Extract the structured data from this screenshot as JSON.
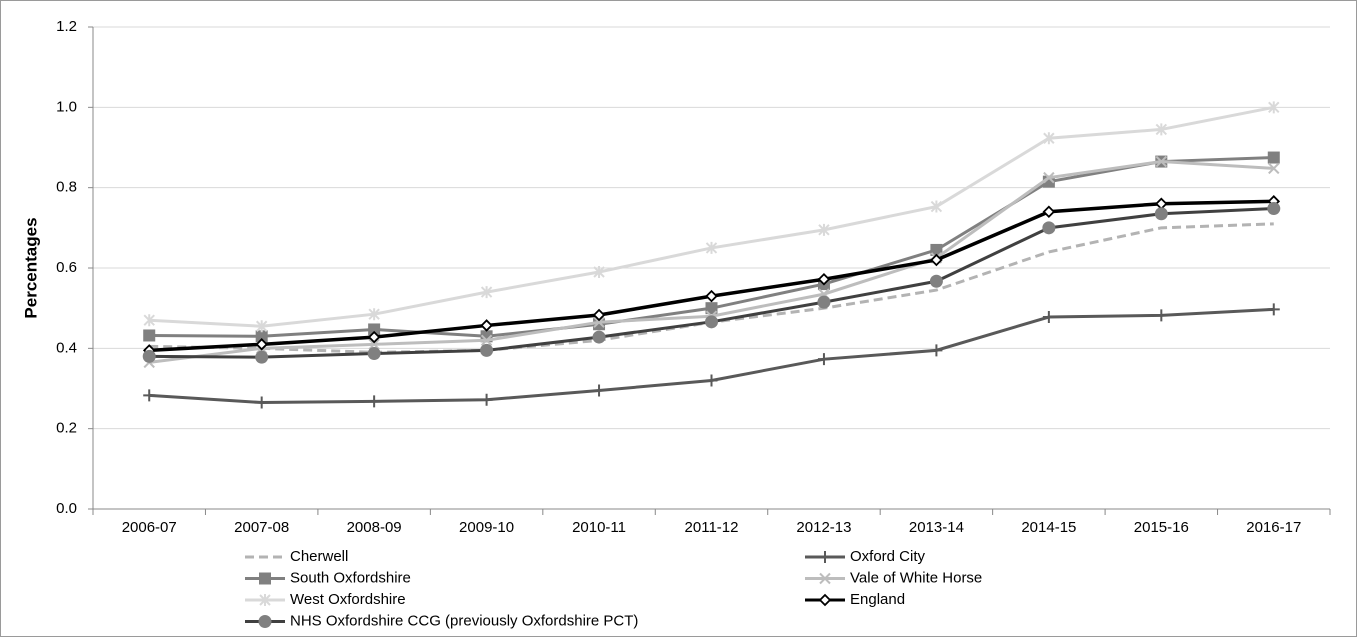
{
  "chart_data": {
    "type": "line",
    "y_label": "Percentages",
    "categories": [
      "2006-07",
      "2007-08",
      "2008-09",
      "2009-10",
      "2010-11",
      "2011-12",
      "2012-13",
      "2013-14",
      "2014-15",
      "2015-16",
      "2016-17"
    ],
    "series": [
      {
        "name": "Cherwell",
        "color": "#b3b3b3",
        "dash": true,
        "marker": "none",
        "values": [
          0.405,
          0.4,
          0.39,
          0.395,
          0.42,
          0.465,
          0.5,
          0.545,
          0.64,
          0.7,
          0.71
        ]
      },
      {
        "name": "Oxford City",
        "color": "#595959",
        "marker": "plus",
        "values": [
          0.283,
          0.265,
          0.268,
          0.272,
          0.295,
          0.32,
          0.373,
          0.395,
          0.478,
          0.482,
          0.497
        ]
      },
      {
        "name": "South Oxfordshire",
        "color": "#808080",
        "marker": "square",
        "values": [
          0.432,
          0.43,
          0.447,
          0.43,
          0.46,
          0.5,
          0.56,
          0.645,
          0.815,
          0.865,
          0.875
        ]
      },
      {
        "name": "Vale of White Horse",
        "color": "#bdbdbd",
        "marker": "cross",
        "values": [
          0.365,
          0.4,
          0.41,
          0.42,
          0.465,
          0.48,
          0.535,
          0.625,
          0.825,
          0.865,
          0.848
        ]
      },
      {
        "name": "West Oxfordshire",
        "color": "#d9d9d9",
        "marker": "star",
        "values": [
          0.47,
          0.455,
          0.485,
          0.54,
          0.59,
          0.65,
          0.695,
          0.753,
          0.923,
          0.945,
          1.0
        ]
      },
      {
        "name": "England",
        "color": "#000000",
        "marker": "diamond",
        "values": [
          0.395,
          0.41,
          0.428,
          0.457,
          0.483,
          0.53,
          0.572,
          0.62,
          0.74,
          0.76,
          0.766
        ]
      },
      {
        "name": "NHS Oxfordshire CCG (previously Oxfordshire PCT)",
        "color": "#404040",
        "marker": "circle",
        "values": [
          0.38,
          0.378,
          0.387,
          0.395,
          0.428,
          0.466,
          0.515,
          0.567,
          0.7,
          0.735,
          0.748
        ]
      }
    ],
    "ylim": [
      0,
      1.2
    ],
    "yticks": [
      {
        "value": 0,
        "label": "0.0"
      },
      0.2,
      0.4,
      0.6,
      0.8,
      {
        "value": 1,
        "label": "1.0"
      },
      1.2
    ],
    "grid": true
  }
}
